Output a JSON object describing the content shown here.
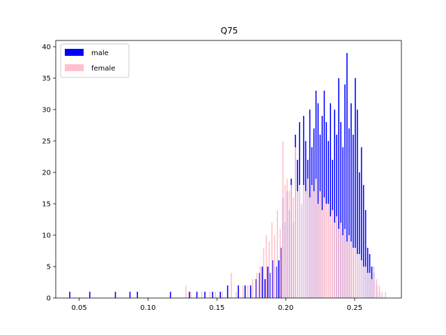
{
  "chart_data": {
    "type": "bar",
    "title": "Q75",
    "xlabel": "",
    "ylabel": "",
    "xlim": [
      0.033,
      0.284
    ],
    "ylim": [
      0,
      41
    ],
    "xticks": [
      0.05,
      0.1,
      0.15,
      0.2,
      0.25
    ],
    "xtick_labels": [
      "0.05",
      "0.10",
      "0.15",
      "0.20",
      "0.25"
    ],
    "yticks": [
      0,
      5,
      10,
      15,
      20,
      25,
      30,
      35,
      40
    ],
    "ytick_labels": [
      "0",
      "5",
      "10",
      "15",
      "20",
      "25",
      "30",
      "35",
      "40"
    ],
    "grid": false,
    "legend_position": "top-left",
    "bin_width": 0.0008,
    "series": [
      {
        "name": "male",
        "color": "#0000ff",
        "bins": [
          [
            0.0432,
            1
          ],
          [
            0.0577,
            1
          ],
          [
            0.0763,
            1
          ],
          [
            0.0869,
            1
          ],
          [
            0.0923,
            1
          ],
          [
            0.1163,
            1
          ],
          [
            0.13,
            1
          ],
          [
            0.1355,
            1
          ],
          [
            0.1413,
            1
          ],
          [
            0.1469,
            1
          ],
          [
            0.1525,
            1
          ],
          [
            0.1578,
            2
          ],
          [
            0.1656,
            2
          ],
          [
            0.1705,
            2
          ],
          [
            0.1745,
            2
          ],
          [
            0.1785,
            3
          ],
          [
            0.181,
            4
          ],
          [
            0.183,
            5
          ],
          [
            0.185,
            3
          ],
          [
            0.187,
            5
          ],
          [
            0.1885,
            4
          ],
          [
            0.1905,
            6
          ],
          [
            0.192,
            5
          ],
          [
            0.1935,
            5
          ],
          [
            0.195,
            6
          ],
          [
            0.1965,
            8
          ],
          [
            0.198,
            16
          ],
          [
            0.1995,
            12
          ],
          [
            0.201,
            17
          ],
          [
            0.2025,
            14
          ],
          [
            0.204,
            19
          ],
          [
            0.2055,
            12
          ],
          [
            0.207,
            26
          ],
          [
            0.2085,
            22
          ],
          [
            0.21,
            28
          ],
          [
            0.2115,
            14
          ],
          [
            0.213,
            29
          ],
          [
            0.2145,
            25
          ],
          [
            0.216,
            22
          ],
          [
            0.2175,
            30
          ],
          [
            0.219,
            24
          ],
          [
            0.2205,
            27
          ],
          [
            0.222,
            33
          ],
          [
            0.2235,
            31
          ],
          [
            0.225,
            26
          ],
          [
            0.2265,
            29
          ],
          [
            0.228,
            33
          ],
          [
            0.2295,
            28
          ],
          [
            0.231,
            25
          ],
          [
            0.2325,
            31
          ],
          [
            0.234,
            22
          ],
          [
            0.2355,
            30
          ],
          [
            0.237,
            26
          ],
          [
            0.2385,
            35
          ],
          [
            0.24,
            28
          ],
          [
            0.2415,
            24
          ],
          [
            0.243,
            34
          ],
          [
            0.2445,
            39
          ],
          [
            0.246,
            27
          ],
          [
            0.2475,
            31
          ],
          [
            0.249,
            26
          ],
          [
            0.2505,
            35
          ],
          [
            0.252,
            30
          ],
          [
            0.2535,
            20
          ],
          [
            0.255,
            24
          ],
          [
            0.2565,
            18
          ],
          [
            0.258,
            14
          ],
          [
            0.2595,
            8
          ],
          [
            0.261,
            7
          ],
          [
            0.2625,
            5
          ],
          [
            0.264,
            4
          ],
          [
            0.266,
            2
          ],
          [
            0.268,
            1
          ]
        ]
      },
      {
        "name": "female",
        "color": "#ffc0cb",
        "bins": [
          [
            0.1275,
            2
          ],
          [
            0.131,
            1
          ],
          [
            0.139,
            1
          ],
          [
            0.145,
            1
          ],
          [
            0.149,
            1
          ],
          [
            0.154,
            1
          ],
          [
            0.1605,
            4
          ],
          [
            0.164,
            1
          ],
          [
            0.169,
            2
          ],
          [
            0.1725,
            2
          ],
          [
            0.176,
            3
          ],
          [
            0.179,
            4
          ],
          [
            0.1815,
            5
          ],
          [
            0.184,
            8
          ],
          [
            0.186,
            10
          ],
          [
            0.188,
            9
          ],
          [
            0.19,
            12
          ],
          [
            0.192,
            10
          ],
          [
            0.194,
            14
          ],
          [
            0.196,
            11
          ],
          [
            0.198,
            25
          ],
          [
            0.1995,
            18
          ],
          [
            0.201,
            19
          ],
          [
            0.2025,
            17
          ],
          [
            0.204,
            18
          ],
          [
            0.2055,
            16
          ],
          [
            0.207,
            24
          ],
          [
            0.2085,
            17
          ],
          [
            0.21,
            18
          ],
          [
            0.2115,
            15
          ],
          [
            0.213,
            18
          ],
          [
            0.2145,
            17
          ],
          [
            0.216,
            19
          ],
          [
            0.2175,
            16
          ],
          [
            0.219,
            18
          ],
          [
            0.2205,
            17
          ],
          [
            0.222,
            19
          ],
          [
            0.2235,
            15
          ],
          [
            0.225,
            17
          ],
          [
            0.2265,
            14
          ],
          [
            0.228,
            16
          ],
          [
            0.2295,
            15
          ],
          [
            0.231,
            15
          ],
          [
            0.2325,
            13
          ],
          [
            0.234,
            14
          ],
          [
            0.2355,
            12
          ],
          [
            0.237,
            13
          ],
          [
            0.2385,
            11
          ],
          [
            0.24,
            12
          ],
          [
            0.2415,
            10
          ],
          [
            0.243,
            11
          ],
          [
            0.2445,
            9
          ],
          [
            0.246,
            10
          ],
          [
            0.2475,
            9
          ],
          [
            0.249,
            8
          ],
          [
            0.2505,
            8
          ],
          [
            0.252,
            7
          ],
          [
            0.2535,
            7
          ],
          [
            0.255,
            6
          ],
          [
            0.2565,
            5
          ],
          [
            0.258,
            5
          ],
          [
            0.2595,
            4
          ],
          [
            0.261,
            4
          ],
          [
            0.2625,
            3
          ],
          [
            0.264,
            5
          ],
          [
            0.266,
            3
          ],
          [
            0.268,
            2
          ],
          [
            0.27,
            1
          ],
          [
            0.2725,
            1
          ]
        ]
      }
    ]
  }
}
